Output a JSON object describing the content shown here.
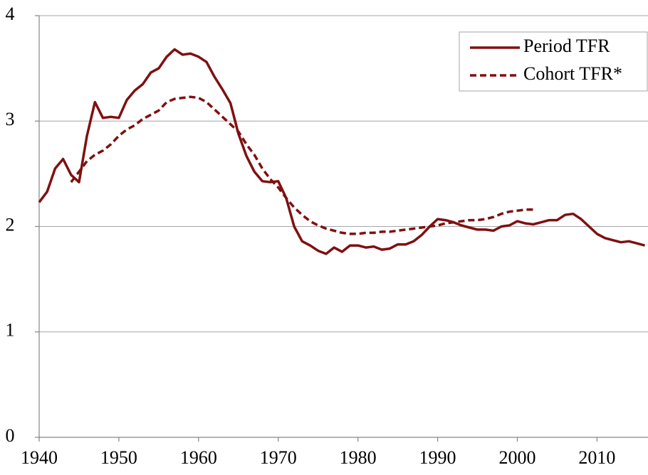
{
  "chart_data": {
    "type": "line",
    "x": [
      1940,
      1941,
      1942,
      1943,
      1944,
      1945,
      1946,
      1947,
      1948,
      1949,
      1950,
      1951,
      1952,
      1953,
      1954,
      1955,
      1956,
      1957,
      1958,
      1959,
      1960,
      1961,
      1962,
      1963,
      1964,
      1965,
      1966,
      1967,
      1968,
      1969,
      1970,
      1971,
      1972,
      1973,
      1974,
      1975,
      1976,
      1977,
      1978,
      1979,
      1980,
      1981,
      1982,
      1983,
      1984,
      1985,
      1986,
      1987,
      1988,
      1989,
      1990,
      1991,
      1992,
      1993,
      1994,
      1995,
      1996,
      1997,
      1998,
      1999,
      2000,
      2001,
      2002,
      2003,
      2004,
      2005,
      2006,
      2007,
      2008,
      2009,
      2010,
      2011,
      2012,
      2013,
      2014,
      2015,
      2016
    ],
    "series": [
      {
        "name": "Period TFR",
        "color": "#7f1010",
        "dash": false,
        "values": [
          2.23,
          2.33,
          2.55,
          2.64,
          2.49,
          2.42,
          2.86,
          3.18,
          3.03,
          3.04,
          3.03,
          3.2,
          3.29,
          3.35,
          3.46,
          3.5,
          3.61,
          3.68,
          3.63,
          3.64,
          3.61,
          3.56,
          3.42,
          3.3,
          3.17,
          2.88,
          2.67,
          2.52,
          2.43,
          2.42,
          2.43,
          2.27,
          2.0,
          1.86,
          1.82,
          1.77,
          1.74,
          1.8,
          1.76,
          1.82,
          1.82,
          1.8,
          1.81,
          1.78,
          1.79,
          1.83,
          1.83,
          1.86,
          1.92,
          2.0,
          2.07,
          2.06,
          2.04,
          2.01,
          1.99,
          1.97,
          1.97,
          1.96,
          2.0,
          2.01,
          2.05,
          2.03,
          2.02,
          2.04,
          2.06,
          2.06,
          2.11,
          2.12,
          2.07,
          2.0,
          1.93,
          1.89,
          1.87,
          1.85,
          1.86,
          1.84,
          1.82
        ]
      },
      {
        "name": "Cohort TFR*",
        "color": "#7f1010",
        "dash": true,
        "values": [
          null,
          null,
          null,
          null,
          2.42,
          2.52,
          2.62,
          2.68,
          2.72,
          2.78,
          2.86,
          2.92,
          2.96,
          3.02,
          3.06,
          3.1,
          3.18,
          3.21,
          3.22,
          3.23,
          3.22,
          3.18,
          3.11,
          3.04,
          2.97,
          2.9,
          2.78,
          2.68,
          2.55,
          2.45,
          2.37,
          2.27,
          2.18,
          2.11,
          2.05,
          2.01,
          1.98,
          1.96,
          1.94,
          1.93,
          1.93,
          1.94,
          1.94,
          1.95,
          1.95,
          1.96,
          1.97,
          1.98,
          1.99,
          2.0,
          2.01,
          2.03,
          2.04,
          2.05,
          2.06,
          2.06,
          2.07,
          2.09,
          2.12,
          2.14,
          2.15,
          2.16,
          2.16,
          null,
          null,
          null,
          null,
          null,
          null,
          null,
          null,
          null,
          null,
          null,
          null,
          null,
          null
        ]
      }
    ],
    "xlim": [
      1940,
      2016.4
    ],
    "xticks": [
      1940,
      1950,
      1960,
      1970,
      1980,
      1990,
      2000,
      2010
    ],
    "ylim": [
      0,
      4
    ],
    "yticks": [
      0,
      1,
      2,
      3,
      4
    ],
    "grid": true,
    "legend": "top-right"
  }
}
